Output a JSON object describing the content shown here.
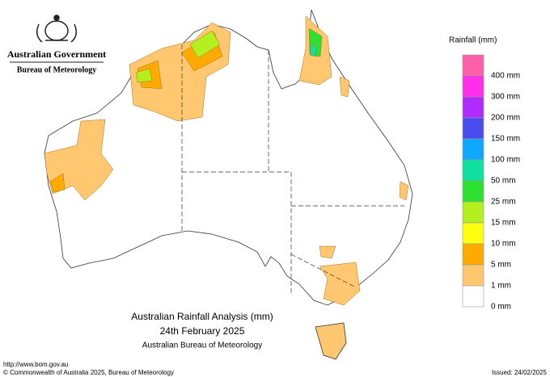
{
  "header": {
    "agency": "Australian Government",
    "bureau": "Bureau of Meteorology"
  },
  "legend": {
    "title": "Rainfall (mm)",
    "items": [
      {
        "label": "400 mm",
        "color": "#ff5fa8"
      },
      {
        "label": "300 mm",
        "color": "#ff2ee8"
      },
      {
        "label": "200 mm",
        "color": "#b02cff"
      },
      {
        "label": "150 mm",
        "color": "#4a4cf0"
      },
      {
        "label": "100 mm",
        "color": "#10a8ff"
      },
      {
        "label": "50 mm",
        "color": "#10e0a0"
      },
      {
        "label": "25 mm",
        "color": "#30e030"
      },
      {
        "label": "15 mm",
        "color": "#b4f020"
      },
      {
        "label": "10 mm",
        "color": "#ffff10"
      },
      {
        "label": "5 mm",
        "color": "#ffaa00"
      },
      {
        "label": "1 mm",
        "color": "#ffc870"
      },
      {
        "label": "0 mm",
        "color": "#ffffff"
      }
    ]
  },
  "title": {
    "line1": "Australian Rainfall Analysis (mm)",
    "line2": "24th February 2025",
    "line3": "Australian Bureau of Meteorology"
  },
  "footer": {
    "url": "http://www.bom.gov.au",
    "copyright": "© Commonwealth of Australia 2025, Bureau of Meteorology",
    "issued": "Issued: 24/02/2025"
  }
}
